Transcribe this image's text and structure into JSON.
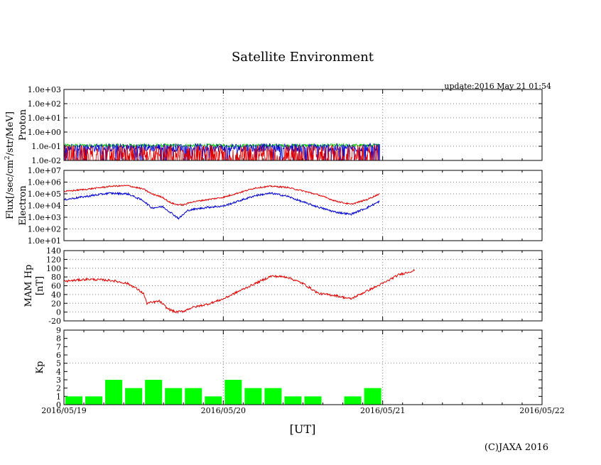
{
  "chart_data": {
    "type": "multi-panel time series",
    "title": "Satellite Environment",
    "update_text": "update:2016 May 21 01:54",
    "copyright": "(C)JAXA 2016",
    "xlabel": "[UT]",
    "x_ticks": [
      "2016/05/19",
      "2016/05/20",
      "2016/05/21",
      "2016/05/22"
    ],
    "x_range_days": [
      0,
      3
    ],
    "data_end_day": 1.98,
    "flux_label_line1": "Flux[/sec/cm",
    "flux_label_sup": "2",
    "flux_label_line2": "/str/MeV]",
    "colors": {
      "red": "#e00000",
      "blue": "#0000d0",
      "green": "#00c000",
      "kp_bar": "#00ff00",
      "grid": "#808080"
    },
    "panels": [
      {
        "id": "proton",
        "ylabel": "Proton",
        "scale": "log",
        "ylim_exp": [
          -2,
          3
        ],
        "yticks": [
          "1.0e-02",
          "1.0e-01",
          "1.0e+00",
          "1.0e+01",
          "1.0e+02",
          "1.0e+03"
        ],
        "series": [
          {
            "name": "green",
            "color": "green",
            "base": -0.95,
            "noise": 0.12
          },
          {
            "name": "blue",
            "color": "blue",
            "base": -1.1,
            "noise": 0.3
          },
          {
            "name": "red",
            "color": "red",
            "base": -1.5,
            "noise": 0.6
          }
        ]
      },
      {
        "id": "electron",
        "ylabel": "Electron",
        "scale": "log",
        "ylim_exp": [
          1,
          7
        ],
        "yticks": [
          "1.0e+01",
          "1.0e+02",
          "1.0e+03",
          "1.0e+04",
          "1.0e+05",
          "1.0e+06",
          "1.0e+07"
        ],
        "series": [
          {
            "name": "red",
            "color": "red",
            "points": [
              [
                0,
                5.2
              ],
              [
                0.15,
                5.4
              ],
              [
                0.3,
                5.65
              ],
              [
                0.4,
                5.7
              ],
              [
                0.5,
                5.4
              ],
              [
                0.55,
                5.0
              ],
              [
                0.62,
                4.7
              ],
              [
                0.66,
                4.3
              ],
              [
                0.7,
                4.1
              ],
              [
                0.75,
                4.05
              ],
              [
                0.8,
                4.3
              ],
              [
                0.9,
                4.5
              ],
              [
                1.0,
                4.7
              ],
              [
                1.1,
                5.1
              ],
              [
                1.2,
                5.5
              ],
              [
                1.3,
                5.65
              ],
              [
                1.4,
                5.55
              ],
              [
                1.5,
                5.25
              ],
              [
                1.6,
                4.9
              ],
              [
                1.7,
                4.4
              ],
              [
                1.8,
                4.1
              ],
              [
                1.9,
                4.5
              ],
              [
                1.98,
                5.0
              ]
            ],
            "noise": 0.06
          },
          {
            "name": "blue",
            "color": "blue",
            "points": [
              [
                0,
                4.5
              ],
              [
                0.1,
                4.7
              ],
              [
                0.28,
                5.05
              ],
              [
                0.4,
                5.0
              ],
              [
                0.5,
                4.4
              ],
              [
                0.55,
                3.8
              ],
              [
                0.62,
                3.9
              ],
              [
                0.68,
                3.3
              ],
              [
                0.72,
                2.9
              ],
              [
                0.78,
                3.6
              ],
              [
                0.9,
                3.85
              ],
              [
                1.0,
                3.95
              ],
              [
                1.1,
                4.4
              ],
              [
                1.2,
                4.85
              ],
              [
                1.3,
                5.05
              ],
              [
                1.4,
                4.8
              ],
              [
                1.5,
                4.3
              ],
              [
                1.6,
                3.85
              ],
              [
                1.7,
                3.45
              ],
              [
                1.8,
                3.25
              ],
              [
                1.9,
                3.8
              ],
              [
                1.98,
                4.35
              ]
            ],
            "noise": 0.08
          }
        ]
      },
      {
        "id": "mam",
        "ylabel": "MAM Hp",
        "ylabel2": "[nT]",
        "scale": "linear",
        "ylim": [
          -20,
          140
        ],
        "yticks": [
          "-20",
          "0",
          "20",
          "40",
          "60",
          "80",
          "100",
          "120",
          "140"
        ],
        "series": [
          {
            "name": "red",
            "color": "red",
            "points": [
              [
                0,
                70
              ],
              [
                0.15,
                75
              ],
              [
                0.3,
                72
              ],
              [
                0.4,
                65
              ],
              [
                0.45,
                55
              ],
              [
                0.5,
                42
              ],
              [
                0.52,
                20
              ],
              [
                0.6,
                25
              ],
              [
                0.65,
                8
              ],
              [
                0.7,
                0
              ],
              [
                0.75,
                2
              ],
              [
                0.8,
                10
              ],
              [
                0.9,
                18
              ],
              [
                1.0,
                30
              ],
              [
                1.1,
                48
              ],
              [
                1.2,
                65
              ],
              [
                1.3,
                82
              ],
              [
                1.4,
                80
              ],
              [
                1.5,
                65
              ],
              [
                1.6,
                42
              ],
              [
                1.7,
                38
              ],
              [
                1.8,
                30
              ],
              [
                1.9,
                48
              ],
              [
                2.0,
                65
              ],
              [
                2.1,
                85
              ],
              [
                2.2,
                95
              ]
            ],
            "noise": 2.5
          }
        ]
      },
      {
        "id": "kp",
        "ylabel": "Kp",
        "scale": "linear",
        "ylim": [
          0,
          9
        ],
        "yticks": [
          "0",
          "1",
          "2",
          "3",
          "4",
          "5",
          "6",
          "7",
          "8",
          "9"
        ],
        "bars": [
          1,
          1,
          3,
          2,
          3,
          2,
          2,
          1,
          3,
          2,
          2,
          1,
          1,
          0,
          1,
          2
        ]
      }
    ]
  }
}
